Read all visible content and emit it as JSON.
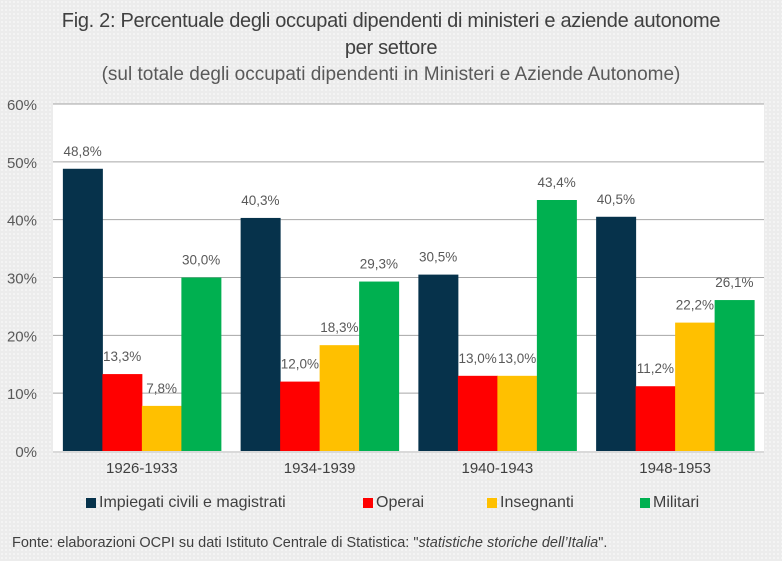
{
  "chart_data": {
    "type": "bar",
    "title_line1": "Fig. 2: Percentuale degli occupati dipendenti di ministeri e aziende autonome",
    "title_line2": "per settore",
    "subtitle": "(sul totale degli occupati dipendenti in Ministeri e Aziende Autonome)",
    "xlabel": "",
    "ylabel": "",
    "ylim": [
      0,
      60
    ],
    "yticks": [
      0,
      10,
      20,
      30,
      40,
      50,
      60
    ],
    "ytick_labels": [
      "0%",
      "10%",
      "20%",
      "30%",
      "40%",
      "50%",
      "60%"
    ],
    "grid": true,
    "legend_position": "bottom",
    "categories": [
      "1926-1933",
      "1934-1939",
      "1940-1943",
      "1948-1953"
    ],
    "series": [
      {
        "name": "Impiegati civili e magistrati",
        "color": "#06324b",
        "values": [
          48.8,
          40.3,
          30.5,
          40.5
        ],
        "labels": [
          "48,8%",
          "40,3%",
          "30,5%",
          "40,5%"
        ]
      },
      {
        "name": "Operai",
        "color": "#ff0000",
        "values": [
          13.3,
          12.0,
          13.0,
          11.2
        ],
        "labels": [
          "13,3%",
          "12,0%",
          "13,0%",
          "11,2%"
        ]
      },
      {
        "name": "Insegnanti",
        "color": "#ffc000",
        "values": [
          7.8,
          18.3,
          13.0,
          22.2
        ],
        "labels": [
          "7,8%",
          "18,3%",
          "13,0%",
          "22,2%"
        ]
      },
      {
        "name": "Militari",
        "color": "#00b050",
        "values": [
          30.0,
          29.3,
          43.4,
          26.1
        ],
        "labels": [
          "30,0%",
          "29,3%",
          "43,4%",
          "26,1%"
        ]
      }
    ]
  },
  "footer": {
    "prefix": "Fonte: elaborazioni OCPI su dati Istituto Centrale di Statistica: \"",
    "italic": "statistiche storiche dell’Italia",
    "suffix": "\"."
  }
}
